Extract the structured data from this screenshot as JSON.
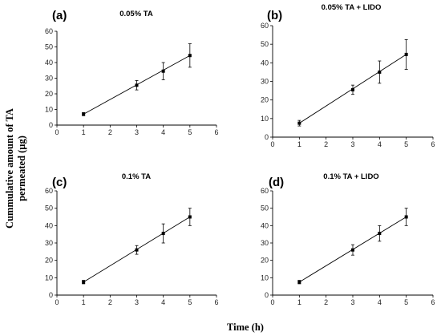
{
  "figure": {
    "ylabel": "Cummulative amount of TA permeated (µg)",
    "ylabel_lines": [
      "Cummulative amount of TA",
      "permeated (µg)"
    ],
    "xlabel": "Time (h)"
  },
  "chart_data": [
    {
      "type": "scatter",
      "panel": "(a)",
      "title": "0.05% TA",
      "xlim": [
        0,
        6
      ],
      "ylim": [
        0,
        60
      ],
      "xticks": [
        0,
        1,
        2,
        3,
        4,
        5,
        6
      ],
      "yticks": [
        0,
        10,
        20,
        30,
        40,
        50,
        60
      ],
      "trendline": true,
      "series": [
        {
          "x": [
            1,
            3,
            4,
            5
          ],
          "y": [
            7,
            25.5,
            34.5,
            44.5
          ],
          "err": [
            1,
            3,
            5.5,
            7.5
          ]
        }
      ]
    },
    {
      "type": "scatter",
      "panel": "(b)",
      "title": "0.05%  TA + LIDO",
      "xlim": [
        0,
        6
      ],
      "ylim": [
        0,
        60
      ],
      "xticks": [
        0,
        1,
        2,
        3,
        4,
        5,
        6
      ],
      "yticks": [
        0,
        10,
        20,
        30,
        40,
        50,
        60
      ],
      "trendline": true,
      "series": [
        {
          "x": [
            1,
            3,
            4,
            5
          ],
          "y": [
            7.5,
            25.5,
            35,
            44.5
          ],
          "err": [
            1.5,
            2.5,
            6,
            8
          ]
        }
      ]
    },
    {
      "type": "scatter",
      "panel": "(c)",
      "title": "0.1%  TA",
      "xlim": [
        0,
        6
      ],
      "ylim": [
        0,
        60
      ],
      "xticks": [
        0,
        1,
        2,
        3,
        4,
        5,
        6
      ],
      "yticks": [
        0,
        10,
        20,
        30,
        40,
        50,
        60
      ],
      "trendline": true,
      "series": [
        {
          "x": [
            1,
            3,
            4,
            5
          ],
          "y": [
            7.5,
            26,
            35.5,
            45
          ],
          "err": [
            1,
            2.5,
            5.5,
            5
          ]
        }
      ]
    },
    {
      "type": "scatter",
      "panel": "(d)",
      "title": "0.1%  TA + LIDO",
      "xlim": [
        0,
        6
      ],
      "ylim": [
        0,
        60
      ],
      "xticks": [
        0,
        1,
        2,
        3,
        4,
        5,
        6
      ],
      "yticks": [
        0,
        10,
        20,
        30,
        40,
        50,
        60
      ],
      "trendline": true,
      "series": [
        {
          "x": [
            1,
            3,
            4,
            5
          ],
          "y": [
            7.5,
            26,
            35.5,
            45
          ],
          "err": [
            1,
            3,
            4.5,
            5
          ]
        }
      ]
    }
  ]
}
